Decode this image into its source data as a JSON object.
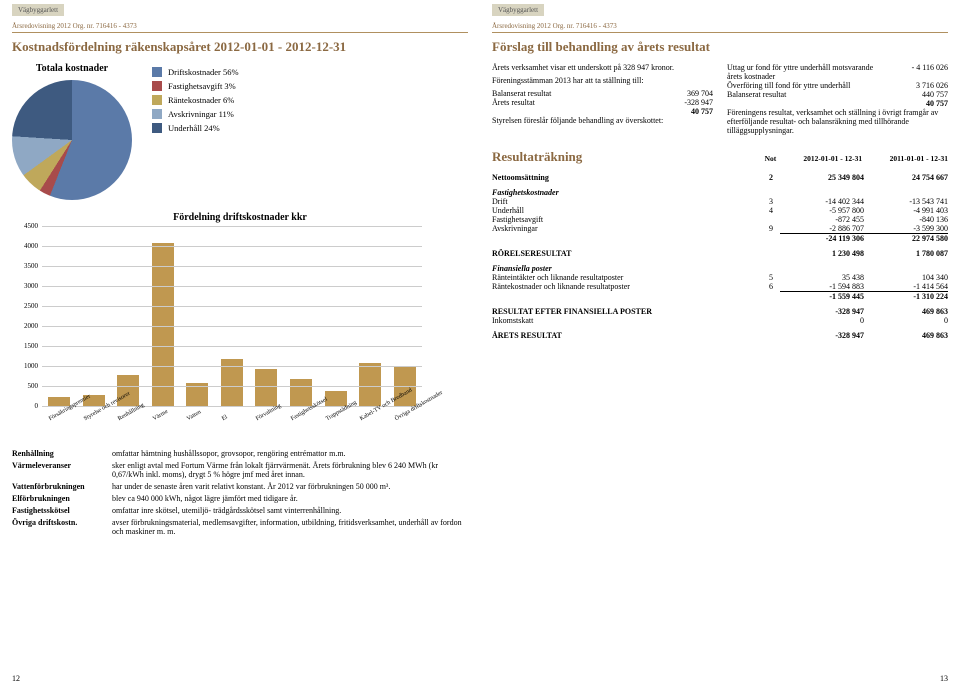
{
  "logo_text": "Vägbyggarlett",
  "meta_line": "Årsredovisning 2012   Org. nr. 716416 - 4373",
  "left": {
    "title": "Kostnadsfördelning räkenskapsåret 2012-01-01 - 2012-12-31",
    "pie_title": "Totala kostnader",
    "pie": {
      "slices": [
        {
          "label": "Driftskostnader 56%",
          "value": 56,
          "color": "#5b7aa8"
        },
        {
          "label": "Fastighetsavgift 3%",
          "value": 3,
          "color": "#a84b4b"
        },
        {
          "label": "Räntekostnader 6%",
          "value": 6,
          "color": "#bfa85b"
        },
        {
          "label": "Avskrivningar 11%",
          "value": 11,
          "color": "#8fa8c4"
        },
        {
          "label": "Underhåll 24%",
          "value": 24,
          "color": "#3e5a80"
        }
      ]
    },
    "bar_title": "Fördelning driftskostnader kkr",
    "bar_chart": {
      "ymax": 4500,
      "ytick": 500,
      "categories": [
        "Försäkringspremier",
        "Styrelse och revisorer",
        "Renhållning",
        "Värme",
        "Vatten",
        "El",
        "Förvaltning",
        "Fastighetsskötsel",
        "Trappstädning",
        "Kabel-TV och Bredband",
        "Övriga driftskostnader"
      ],
      "values": [
        250,
        300,
        800,
        4100,
        600,
        1200,
        950,
        700,
        400,
        1100,
        1000
      ],
      "bar_color": "#c09850",
      "grid_color": "#cccccc"
    },
    "defs": [
      {
        "term": "Renhållning",
        "desc": "omfattar hämtning hushållssopor, grovsopor, rengöring entrémattor m.m."
      },
      {
        "term": "Värmeleveranser",
        "desc": "sker enligt avtal med Fortum Värme från lokalt fjärrvärmenät. Årets förbrukning blev 6 240 MWh (kr 0,67/kWh inkl. moms), drygt 5 % högre jmf med året innan."
      },
      {
        "term": "Vattenförbrukningen",
        "desc": "har under de senaste åren varit relativt konstant. År 2012 var förbrukningen 50 000 m³."
      },
      {
        "term": "Elförbrukningen",
        "desc": "blev ca 940 000 kWh, något lägre jämfört med tidigare år."
      },
      {
        "term": "Fastighetsskötsel",
        "desc": "omfattar inre skötsel, utemiljö- trädgårdsskötsel samt vinterrenhållning."
      },
      {
        "term": "Övriga driftskostn.",
        "desc": "avser förbrukningsmaterial, medlemsavgifter, information, utbildning, fritidsverksamhet, underhåll av fordon och maskiner m. m."
      }
    ],
    "page_number": "12"
  },
  "right": {
    "title": "Förslag till behandling av årets resultat",
    "colA": {
      "p1": "Årets verksamhet visar ett underskott på 328 947 kronor.",
      "p2": "Föreningsstämman 2013 har att ta ställning till:",
      "rows": [
        {
          "l": "Balanserat resultat",
          "v": "369 704"
        },
        {
          "l": "Årets resultat",
          "v": "-328 947"
        },
        {
          "l": "",
          "v": "40 757"
        }
      ],
      "p3": "Styrelsen föreslår följande behandling av överskottet:"
    },
    "colB": {
      "rows": [
        {
          "l": "Uttag ur fond för yttre underhåll motsvarande årets kostnader",
          "v": "- 4 116 026"
        },
        {
          "l": "Överföring till fond för yttre underhåll",
          "v": "3 716 026"
        },
        {
          "l": "Balanserat resultat",
          "v": "440 757"
        },
        {
          "l": "",
          "v": "40 757"
        }
      ],
      "p1": "Föreningens resultat, verksamhet och ställning i övrigt framgår av efterföljande resultat- och balansräkning med tillhörande tilläggsupplysningar."
    },
    "result_title": "Resultaträkning",
    "col_headers": {
      "note": "Not",
      "c1": "2012-01-01 - 12-31",
      "c2": "2011-01-01 - 12-31"
    },
    "rows": [
      {
        "type": "line",
        "l": "Nettoomsättning",
        "n": "2",
        "v1": "25 349 804",
        "v2": "24 754 667",
        "bold": true
      },
      {
        "type": "section",
        "l": "Fastighetskostnader"
      },
      {
        "type": "line",
        "l": "Drift",
        "n": "3",
        "v1": "-14 402 344",
        "v2": "-13 543 741"
      },
      {
        "type": "line",
        "l": "Underhåll",
        "n": "4",
        "v1": "-5 957 800",
        "v2": "-4 991 403"
      },
      {
        "type": "line",
        "l": "Fastighetsavgift",
        "n": "",
        "v1": "-872 455",
        "v2": "-840 136"
      },
      {
        "type": "line",
        "l": "Avskrivningar",
        "n": "9",
        "v1": "-2 886 707",
        "v2": "-3 599 300"
      },
      {
        "type": "sum",
        "l": "",
        "n": "",
        "v1": "-24 119 306",
        "v2": "22 974 580"
      },
      {
        "type": "gap"
      },
      {
        "type": "line",
        "l": "RÖRELSERESULTAT",
        "n": "",
        "v1": "1 230 498",
        "v2": "1 780 087",
        "bold": true
      },
      {
        "type": "section",
        "l": "Finansiella poster"
      },
      {
        "type": "line",
        "l": "Ränteintäkter och liknande resultatposter",
        "n": "5",
        "v1": "35 438",
        "v2": "104 340"
      },
      {
        "type": "line",
        "l": "Räntekostnader och liknande resultatposter",
        "n": "6",
        "v1": "-1 594 883",
        "v2": "-1 414 564"
      },
      {
        "type": "sum",
        "l": "",
        "n": "",
        "v1": "-1 559 445",
        "v2": "-1 310 224"
      },
      {
        "type": "gap"
      },
      {
        "type": "line",
        "l": "RESULTAT EFTER FINANSIELLA POSTER",
        "n": "",
        "v1": "-328 947",
        "v2": "469 863",
        "bold": true
      },
      {
        "type": "line",
        "l": "Inkomstskatt",
        "n": "",
        "v1": "0",
        "v2": "0"
      },
      {
        "type": "gap"
      },
      {
        "type": "line",
        "l": "ÅRETS RESULTAT",
        "n": "",
        "v1": "-328 947",
        "v2": "469 863",
        "bold": true
      }
    ],
    "page_number": "13"
  }
}
